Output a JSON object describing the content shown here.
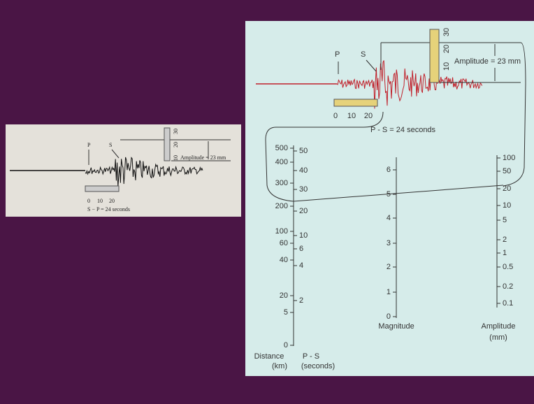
{
  "left_image": {
    "p_label": "P",
    "s_label": "S",
    "ruler_vertical": [
      "30",
      "20",
      "10"
    ],
    "amplitude_note": "Amplitude = 23 mm",
    "ruler_horizontal": [
      "0",
      "10",
      "20"
    ],
    "interval_note": "S − P = 24 seconds"
  },
  "right_diagram": {
    "p_label": "P",
    "s_label": "S",
    "ruler_vertical": [
      "30",
      "20",
      "10"
    ],
    "amplitude_note": "Amplitude = 23 mm",
    "ruler_horizontal": [
      "0",
      "10",
      "20"
    ],
    "interval_note": "P - S = 24 seconds",
    "distance_scale": {
      "ticks": [
        "500",
        "400",
        "300",
        "200",
        "100",
        "60",
        "40",
        "20",
        "5",
        "0"
      ],
      "label": [
        "Distance",
        "(km)"
      ]
    },
    "ps_scale": {
      "ticks": [
        "50",
        "40",
        "30",
        "20",
        "10",
        "6",
        "4",
        "2"
      ],
      "label": [
        "P - S",
        "(seconds)"
      ]
    },
    "magnitude_scale": {
      "ticks": [
        "6",
        "5",
        "4",
        "3",
        "2",
        "1",
        "0"
      ],
      "label": [
        "Magnitude"
      ]
    },
    "amplitude_scale": {
      "ticks": [
        "100",
        "50",
        "20",
        "10",
        "5",
        "2",
        "1",
        "0.5",
        "0.2",
        "0.1"
      ],
      "label": [
        "Amplitude",
        "(mm)"
      ]
    }
  }
}
